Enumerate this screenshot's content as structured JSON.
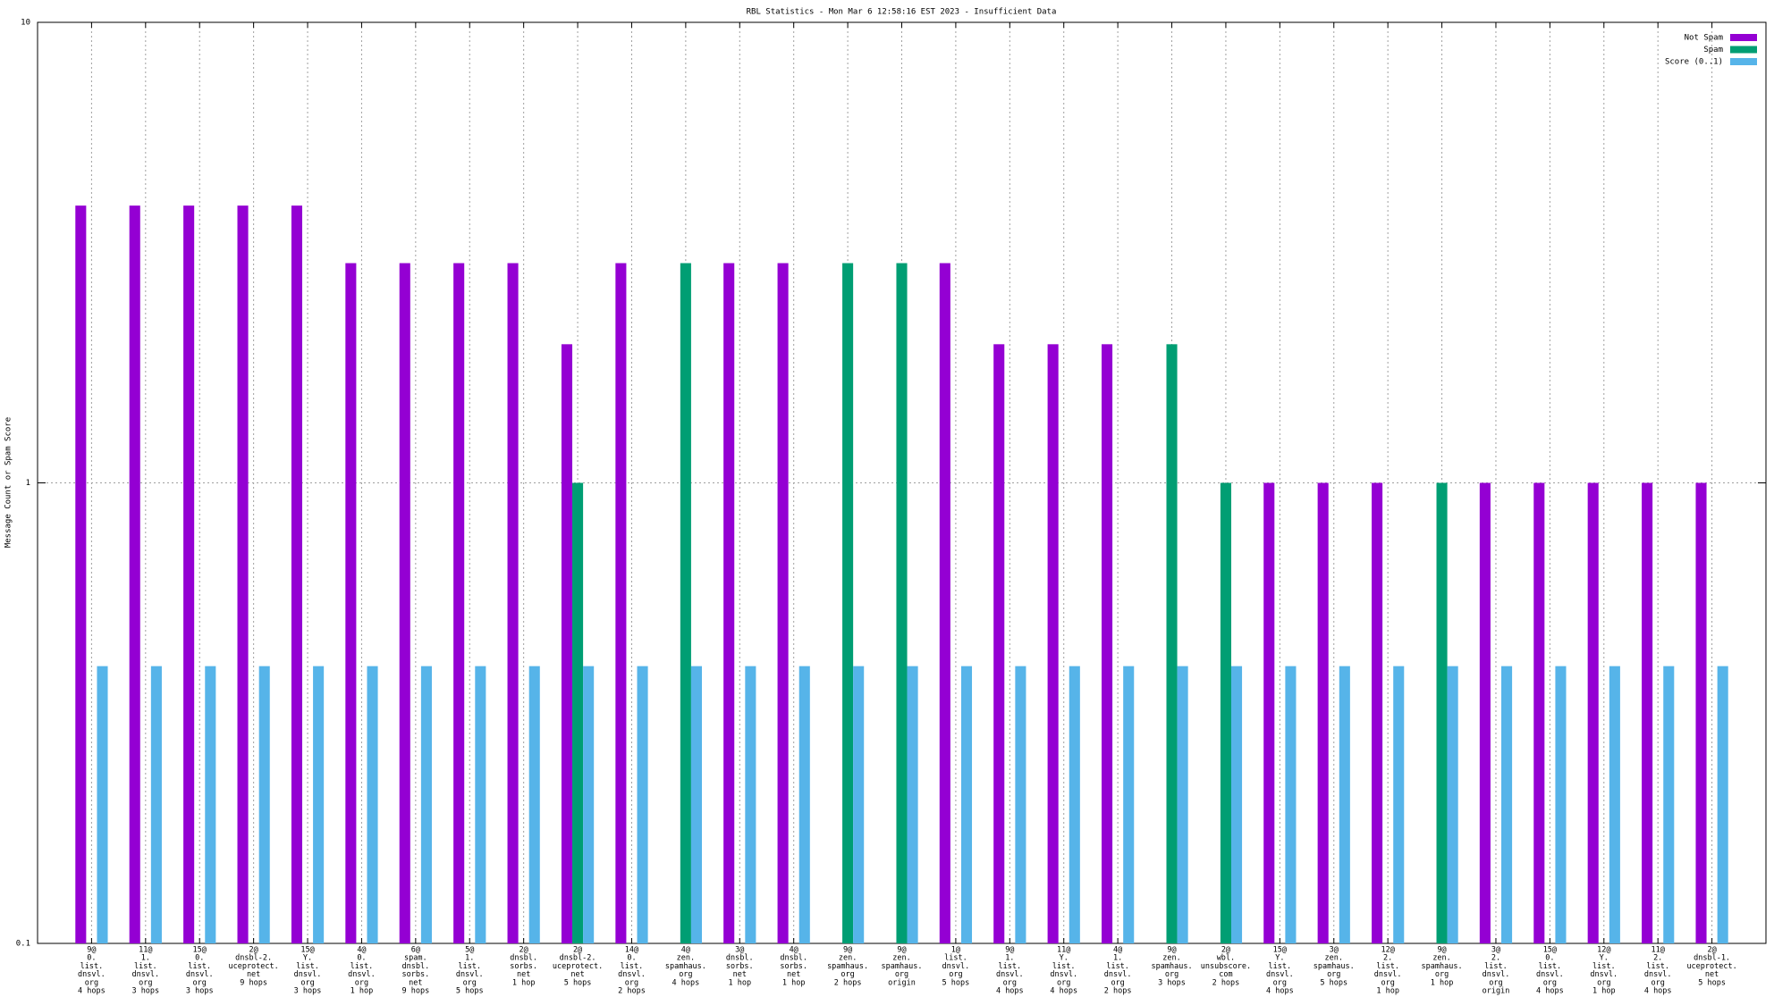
{
  "chart_data": {
    "type": "bar",
    "title": "RBL Statistics - Mon Mar  6 12:58:16 EST 2023 - Insufficient Data",
    "y_label": "Message Count or Spam Score",
    "log_scale_y": true,
    "ylim": [
      0.1,
      10
    ],
    "yticks": [
      0.1,
      1,
      10
    ],
    "grid": true,
    "legend_position": "top-right",
    "categories": [
      [
        "9@",
        "0.",
        "list.",
        "dnsvl.",
        "org",
        "4 hops"
      ],
      [
        "11@",
        "1.",
        "list.",
        "dnsvl.",
        "org",
        "3 hops"
      ],
      [
        "15@",
        "0.",
        "list.",
        "dnsvl.",
        "org",
        "3 hops"
      ],
      [
        "2@",
        "dnsbl-2.",
        "uceprotect.",
        "net",
        "9 hops"
      ],
      [
        "15@",
        "Y.",
        "list.",
        "dnsvl.",
        "org",
        "3 hops"
      ],
      [
        "4@",
        "0.",
        "list.",
        "dnsvl.",
        "org",
        "1 hop"
      ],
      [
        "6@",
        "spam.",
        "dnsbl.",
        "sorbs.",
        "net",
        "9 hops"
      ],
      [
        "5@",
        "1.",
        "list.",
        "dnsvl.",
        "org",
        "5 hops"
      ],
      [
        "2@",
        "dnsbl.",
        "sorbs.",
        "net",
        "1 hop"
      ],
      [
        "2@",
        "dnsbl-2.",
        "uceprotect.",
        "net",
        "5 hops"
      ],
      [
        "14@",
        "0.",
        "list.",
        "dnsvl.",
        "org",
        "2 hops"
      ],
      [
        "4@",
        "zen.",
        "spamhaus.",
        "org",
        "4 hops"
      ],
      [
        "3@",
        "dnsbl.",
        "sorbs.",
        "net",
        "1 hop"
      ],
      [
        "4@",
        "dnsbl.",
        "sorbs.",
        "net",
        "1 hop"
      ],
      [
        "9@",
        "zen.",
        "spamhaus.",
        "org",
        "2 hops"
      ],
      [
        "9@",
        "zen.",
        "spamhaus.",
        "org",
        "origin"
      ],
      [
        "1@",
        "list.",
        "dnsvl.",
        "org",
        "5 hops"
      ],
      [
        "9@",
        "1.",
        "list.",
        "dnsvl.",
        "org",
        "4 hops"
      ],
      [
        "11@",
        "Y.",
        "list.",
        "dnsvl.",
        "org",
        "4 hops"
      ],
      [
        "4@",
        "1.",
        "list.",
        "dnsvl.",
        "org",
        "2 hops"
      ],
      [
        "9@",
        "zen.",
        "spamhaus.",
        "org",
        "3 hops"
      ],
      [
        "2@",
        "wbl.",
        "unsubscore.",
        "com",
        "2 hops"
      ],
      [
        "15@",
        "Y.",
        "list.",
        "dnsvl.",
        "org",
        "4 hops"
      ],
      [
        "3@",
        "zen.",
        "spamhaus.",
        "org",
        "5 hops"
      ],
      [
        "12@",
        "2.",
        "list.",
        "dnsvl.",
        "org",
        "1 hop"
      ],
      [
        "9@",
        "zen.",
        "spamhaus.",
        "org",
        "1 hop"
      ],
      [
        "3@",
        "2.",
        "list.",
        "dnsvl.",
        "org",
        "origin"
      ],
      [
        "15@",
        "0.",
        "list.",
        "dnsvl.",
        "org",
        "4 hops"
      ],
      [
        "12@",
        "Y.",
        "list.",
        "dnsvl.",
        "org",
        "1 hop"
      ],
      [
        "11@",
        "2.",
        "list.",
        "dnsvl.",
        "org",
        "4 hops"
      ],
      [
        "2@",
        "dnsbl-1.",
        "uceprotect.",
        "net",
        "5 hops"
      ]
    ],
    "series": [
      {
        "name": "Not Spam",
        "color": "#9400d3",
        "values": [
          4,
          4,
          4,
          4,
          4,
          3,
          3,
          3,
          3,
          2,
          3,
          null,
          3,
          3,
          null,
          null,
          3,
          2,
          2,
          2,
          null,
          null,
          1,
          1,
          1,
          null,
          1,
          1,
          1,
          1,
          1
        ]
      },
      {
        "name": "Spam",
        "color": "#009e73",
        "values": [
          null,
          null,
          null,
          null,
          null,
          null,
          null,
          null,
          null,
          1,
          null,
          3,
          null,
          null,
          3,
          3,
          null,
          null,
          null,
          null,
          2,
          1,
          null,
          null,
          null,
          1,
          null,
          null,
          null,
          null,
          null
        ]
      },
      {
        "name": "Score (0..1)",
        "color": "#56b4e9",
        "values": [
          0.4,
          0.4,
          0.4,
          0.4,
          0.4,
          0.4,
          0.4,
          0.4,
          0.4,
          0.4,
          0.4,
          0.4,
          0.4,
          0.4,
          0.4,
          0.4,
          0.4,
          0.4,
          0.4,
          0.4,
          0.4,
          0.4,
          0.4,
          0.4,
          0.4,
          0.4,
          0.4,
          0.4,
          0.4,
          0.4,
          0.4
        ]
      }
    ]
  }
}
